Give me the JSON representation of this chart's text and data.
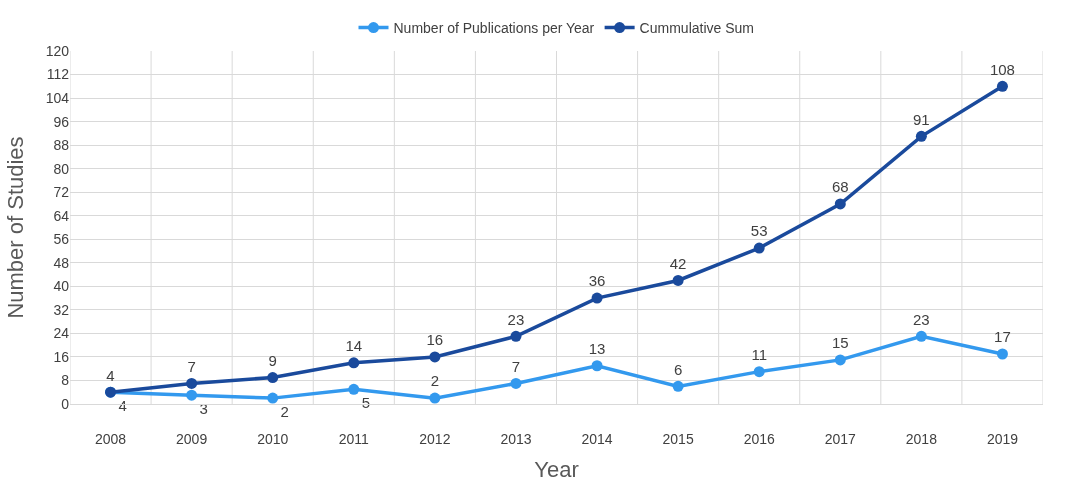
{
  "chart_data": {
    "type": "line",
    "xlabel": "Year",
    "ylabel": "Number of Studies",
    "categories": [
      "2008",
      "2009",
      "2010",
      "2011",
      "2012",
      "2013",
      "2014",
      "2015",
      "2016",
      "2017",
      "2018",
      "2019"
    ],
    "series": [
      {
        "name": "Number of Publications per Year",
        "color": "#3399ee",
        "values": [
          4,
          3,
          2,
          5,
          2,
          7,
          13,
          6,
          11,
          15,
          23,
          17
        ]
      },
      {
        "name": "Cummulative Sum",
        "color": "#1a4a9c",
        "values": [
          4,
          7,
          9,
          14,
          16,
          23,
          36,
          42,
          53,
          68,
          91,
          108
        ]
      }
    ],
    "ylim": [
      0,
      120
    ],
    "yticks": [
      0,
      8,
      16,
      24,
      32,
      40,
      48,
      56,
      64,
      72,
      80,
      88,
      96,
      104,
      112,
      120
    ],
    "grid": true,
    "legend": "top",
    "marker": "circle",
    "line_style": "solid",
    "data_labels": true
  }
}
